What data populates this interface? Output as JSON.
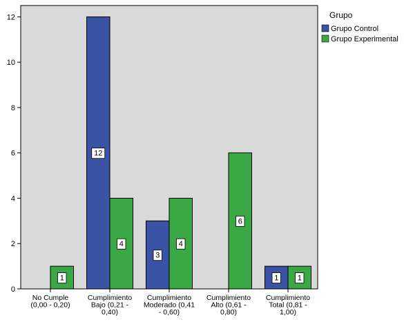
{
  "chart_data": {
    "type": "bar",
    "categories": [
      [
        "No Cumple",
        "(0,00 - 0,20)"
      ],
      [
        "Cumplimiento",
        "Bajo (0,21 -",
        "0,40)"
      ],
      [
        "Cumplimiento",
        "Moderado (0,41",
        "- 0,60)"
      ],
      [
        "Cumplimiento",
        "Alto (0,61 -",
        "0,80)"
      ],
      [
        "Cumplimiento",
        "Total (0,81 -",
        "1,00)"
      ]
    ],
    "series": [
      {
        "name": "Grupo Control",
        "color": "#3a53a4",
        "values": [
          0,
          12,
          3,
          0,
          1
        ]
      },
      {
        "name": "Grupo Experimental",
        "color": "#3aa845",
        "values": [
          1,
          4,
          4,
          6,
          1
        ]
      }
    ],
    "ylim": [
      0,
      12.5
    ],
    "yticks": [
      0,
      2,
      4,
      6,
      8,
      10,
      12
    ],
    "legend": {
      "title": "Grupo",
      "position": "right"
    },
    "plot_background": "#d9d9d9",
    "grid": false
  }
}
